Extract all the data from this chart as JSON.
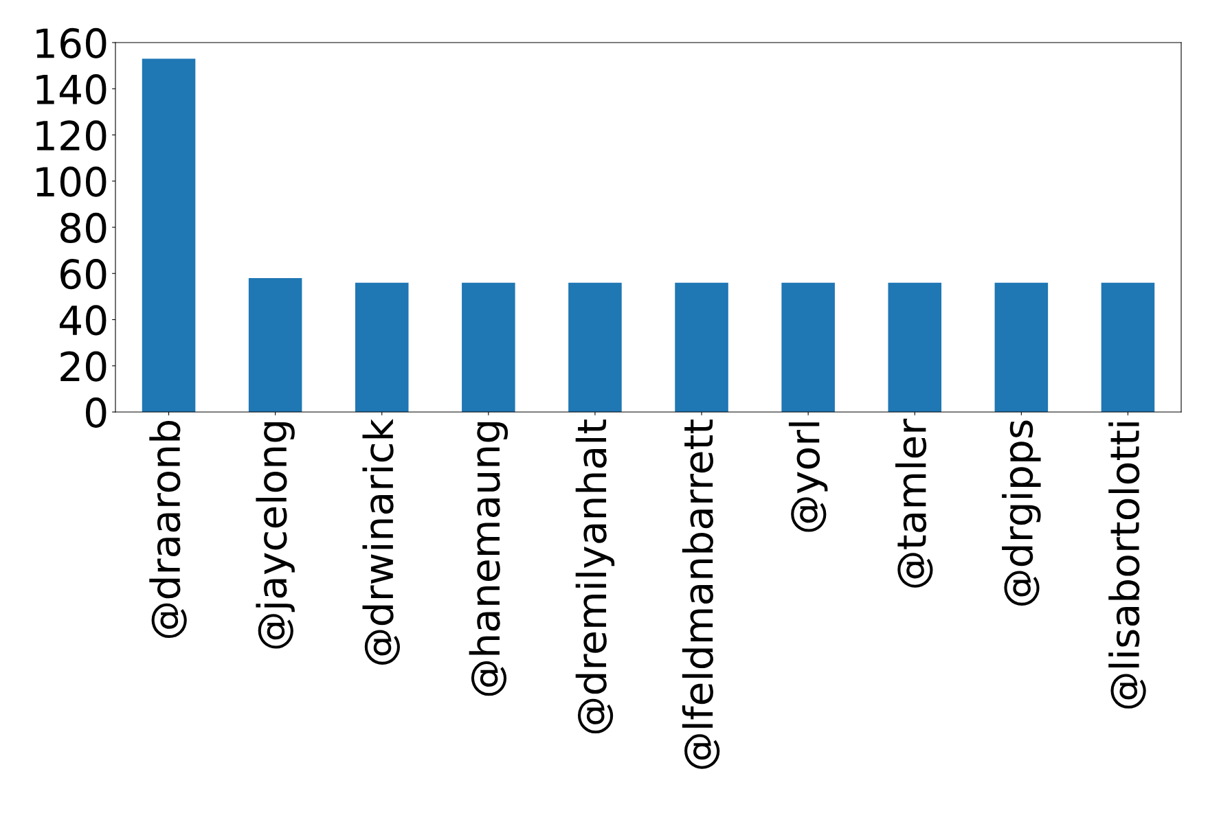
{
  "chart_data": {
    "type": "bar",
    "categories": [
      "@draaronb",
      "@jaycelong",
      "@drwinarick",
      "@hanemaung",
      "@dremilyanhalt",
      "@lfeldmanbarrett",
      "@yorl",
      "@tamler",
      "@drgipps",
      "@lisabortolotti"
    ],
    "values": [
      153,
      58,
      56,
      56,
      56,
      56,
      56,
      56,
      56,
      56
    ],
    "color": "#1f77b4",
    "ylim": [
      0,
      160
    ],
    "yticks": [
      0,
      20,
      40,
      60,
      80,
      100,
      120,
      140,
      160
    ],
    "grid": false
  }
}
